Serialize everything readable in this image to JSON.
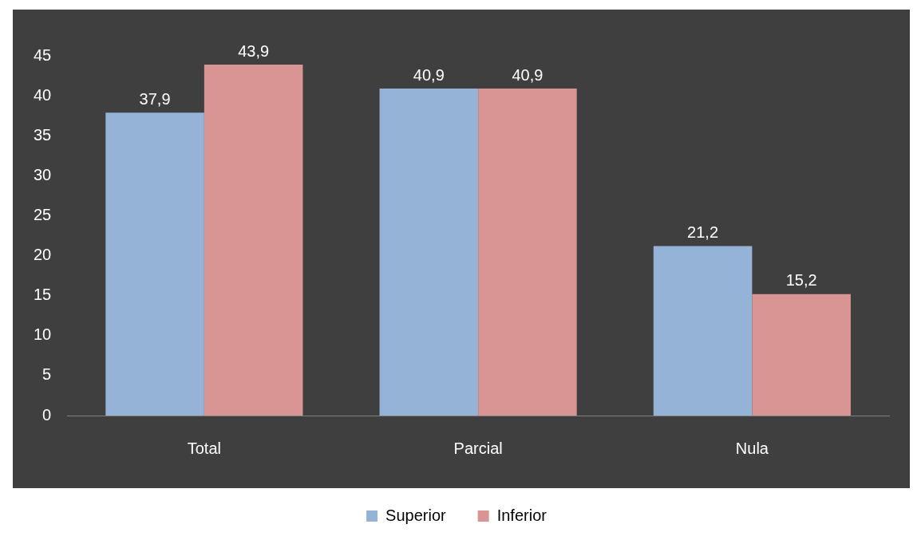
{
  "chart_data": {
    "type": "bar",
    "categories": [
      "Total",
      "Parcial",
      "Nula"
    ],
    "series": [
      {
        "name": "Superior",
        "color": "#95b3d7",
        "values": [
          37.9,
          40.9,
          21.2
        ],
        "value_labels": [
          "37,9",
          "40,9",
          "21,2"
        ]
      },
      {
        "name": "Inferior",
        "color": "#d99594",
        "values": [
          43.9,
          40.9,
          15.2
        ],
        "value_labels": [
          "43,9",
          "40,9",
          "15,2"
        ]
      }
    ],
    "ylim": [
      0,
      45
    ],
    "yticks": [
      0,
      5,
      10,
      15,
      20,
      25,
      30,
      35,
      40,
      45
    ],
    "grid": false,
    "legend": "bottom"
  }
}
